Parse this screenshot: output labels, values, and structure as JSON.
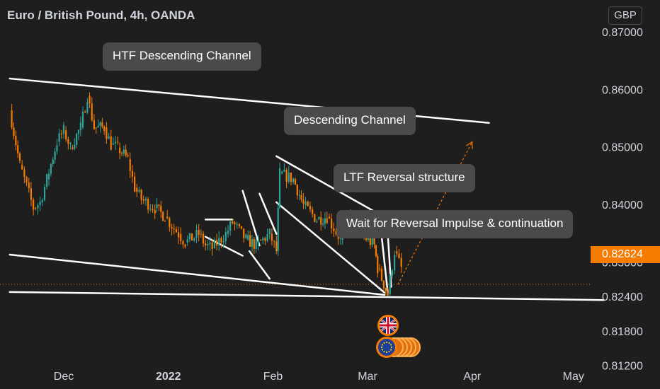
{
  "header": {
    "title": "Euro / British Pound, 4h, OANDA",
    "currency": "GBP"
  },
  "price_axis": {
    "current_price_label": "0.82624"
  },
  "annotations": [
    {
      "text": "HTF Descending Channel"
    },
    {
      "text": "Descending Channel"
    },
    {
      "text": "LTF Reversal structure"
    },
    {
      "text": "Wait for Reversal Impulse & continuation"
    }
  ],
  "colors": {
    "background": "#1e1e1e",
    "up_candle": "#2ea39a",
    "down_candle": "#f57c00",
    "trendline": "#ffffff",
    "callout_bg": "#4a4a4d",
    "price_tag": "#f57c00"
  },
  "icons": [
    "uk-flag-icon",
    "eu-flag-icon"
  ],
  "chart_data": {
    "type": "line",
    "title": "Euro / British Pound, 4h, OANDA",
    "y_unit": "GBP",
    "ylim": [
      0.806,
      0.874
    ],
    "y_ticks": [
      0.87,
      0.86,
      0.85,
      0.84,
      0.83,
      0.824,
      0.818,
      0.812
    ],
    "y_tick_labels": [
      "0.87000",
      "0.86000",
      "0.85000",
      "0.84000",
      "0.83000",
      "0.82400",
      "0.81800",
      "0.81200"
    ],
    "x_ticks": [
      "Dec",
      "2022",
      "Feb",
      "Mar",
      "Apr",
      "May"
    ],
    "x_tick_bold": [
      false,
      true,
      false,
      false,
      false,
      false
    ],
    "current_price": 0.82624,
    "series": [
      {
        "x": [
          "2021-11-15",
          "2021-11-18",
          "2021-11-22",
          "2021-11-24",
          "2021-11-26",
          "2021-11-29",
          "2021-12-01",
          "2021-12-03",
          "2021-12-06",
          "2021-12-08",
          "2021-12-10",
          "2021-12-13",
          "2021-12-15",
          "2021-12-17",
          "2021-12-20",
          "2021-12-22",
          "2021-12-24",
          "2021-12-28",
          "2021-12-31",
          "2022-01-04",
          "2022-01-06",
          "2022-01-10",
          "2022-01-12",
          "2022-01-14",
          "2022-01-18",
          "2022-01-20",
          "2022-01-24",
          "2022-01-27",
          "2022-01-31",
          "2022-02-02",
          "2022-02-03",
          "2022-02-07",
          "2022-02-10",
          "2022-02-14",
          "2022-02-17",
          "2022-02-21",
          "2022-02-24",
          "2022-02-28",
          "2022-03-03",
          "2022-03-04",
          "2022-03-07",
          "2022-03-09",
          "2022-03-11"
        ],
        "values": [
          0.8565,
          0.847,
          0.8395,
          0.8405,
          0.8445,
          0.851,
          0.853,
          0.85,
          0.8535,
          0.859,
          0.8535,
          0.8535,
          0.8505,
          0.85,
          0.848,
          0.843,
          0.841,
          0.8395,
          0.838,
          0.835,
          0.8335,
          0.835,
          0.833,
          0.8325,
          0.835,
          0.837,
          0.834,
          0.833,
          0.835,
          0.832,
          0.8455,
          0.8445,
          0.84,
          0.8375,
          0.838,
          0.834,
          0.838,
          0.8345,
          0.833,
          0.829,
          0.8245,
          0.832,
          0.829
        ]
      }
    ],
    "trendlines": [
      {
        "x": [
          "2021-11-15",
          "2022-04-06"
        ],
        "y": [
          0.862,
          0.8543
        ]
      },
      {
        "x": [
          "2021-11-15",
          "2022-03-06"
        ],
        "y": [
          0.8314,
          0.8244
        ]
      },
      {
        "x": [
          "2021-11-15",
          "2022-05-10"
        ],
        "y": [
          0.8249,
          0.8235
        ]
      },
      {
        "x": [
          "2022-02-02",
          "2022-03-16"
        ],
        "y": [
          0.8485,
          0.8346
        ]
      },
      {
        "x": [
          "2022-02-02",
          "2022-03-06"
        ],
        "y": [
          0.8405,
          0.8248
        ]
      },
      {
        "x": [
          "2022-03-05",
          "2022-03-07"
        ],
        "y": [
          0.8355,
          0.8248
        ]
      },
      {
        "x": [
          "2022-03-07",
          "2022-03-08"
        ],
        "y": [
          0.835,
          0.8258
        ]
      },
      {
        "x": [
          "2022-01-12",
          "2022-01-20"
        ],
        "y": [
          0.8375,
          0.8375
        ]
      },
      {
        "x": [
          "2022-01-12",
          "2022-01-23"
        ],
        "y": [
          0.8345,
          0.8312
        ]
      },
      {
        "x": [
          "2022-01-23",
          "2022-01-28"
        ],
        "y": [
          0.8425,
          0.833
        ]
      },
      {
        "x": [
          "2022-01-25",
          "2022-01-31"
        ],
        "y": [
          0.832,
          0.8272
        ]
      },
      {
        "x": [
          "2022-01-28",
          "2022-02-02"
        ],
        "y": [
          0.842,
          0.835
        ]
      }
    ],
    "projection": {
      "x": [
        "2022-03-10",
        "2022-04-01"
      ],
      "y": [
        0.8262,
        0.851
      ]
    }
  }
}
